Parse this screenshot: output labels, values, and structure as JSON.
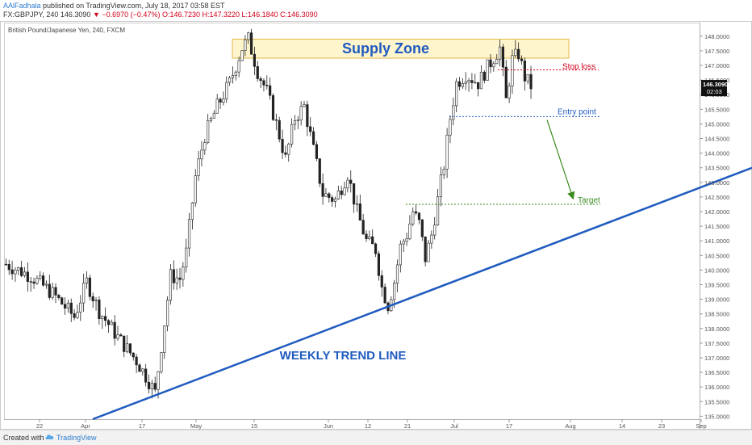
{
  "header": {
    "author": "AAlFadhala",
    "published": "published on TradingView.com, July 18, 2017 03:58 EST",
    "symbol": "FX:GBPJPY, 240",
    "price": "146.3090",
    "change": "−0.6970 (−0.47%)",
    "ohlc": "O:146.7230 H:147.3220 L:146.1840 C:146.3090"
  },
  "chart_data": {
    "type": "candlestick",
    "title": "British Pound/Japanese Yen, 240, FXCM",
    "ylim": [
      134.9,
      148.3
    ],
    "y_ticks": [
      "135.0000",
      "135.5000",
      "136.0000",
      "136.5000",
      "137.0000",
      "137.5000",
      "138.0000",
      "138.5000",
      "139.0000",
      "139.5000",
      "140.0000",
      "140.5000",
      "141.0000",
      "141.5000",
      "142.0000",
      "142.5000",
      "143.0000",
      "143.5000",
      "144.0000",
      "144.5000",
      "145.0000",
      "145.5000",
      "146.0000",
      "146.5000",
      "147.0000",
      "147.5000",
      "148.0000"
    ],
    "x_ticks": [
      "22",
      "Apr",
      "17",
      "May",
      "15",
      "Jun",
      "12",
      "21",
      "Jul",
      "17",
      "Aug",
      "14",
      "23",
      "Sep"
    ],
    "price_label": "146.3090",
    "countdown": "02:03",
    "path": [
      {
        "t": 0,
        "p": 140.2
      },
      {
        "t": 8,
        "p": 139.8
      },
      {
        "t": 15,
        "p": 139.2
      },
      {
        "t": 22,
        "p": 138.4
      },
      {
        "t": 26,
        "p": 139.6
      },
      {
        "t": 30,
        "p": 138.6
      },
      {
        "t": 36,
        "p": 137.7
      },
      {
        "t": 42,
        "p": 136.9
      },
      {
        "t": 46,
        "p": 136.2
      },
      {
        "t": 48,
        "p": 135.8
      },
      {
        "t": 50,
        "p": 137.4
      },
      {
        "t": 53,
        "p": 139.8
      },
      {
        "t": 56,
        "p": 139.7
      },
      {
        "t": 58,
        "p": 140.6
      },
      {
        "t": 61,
        "p": 143.2
      },
      {
        "t": 64,
        "p": 144.6
      },
      {
        "t": 68,
        "p": 145.6
      },
      {
        "t": 72,
        "p": 146.4
      },
      {
        "t": 76,
        "p": 147.6
      },
      {
        "t": 78,
        "p": 147.9
      },
      {
        "t": 81,
        "p": 146.8
      },
      {
        "t": 84,
        "p": 146.1
      },
      {
        "t": 87,
        "p": 145.0
      },
      {
        "t": 90,
        "p": 143.8
      },
      {
        "t": 93,
        "p": 145.2
      },
      {
        "t": 96,
        "p": 145.6
      },
      {
        "t": 99,
        "p": 144.1
      },
      {
        "t": 102,
        "p": 142.6
      },
      {
        "t": 106,
        "p": 142.4
      },
      {
        "t": 110,
        "p": 143.3
      },
      {
        "t": 113,
        "p": 142.0
      },
      {
        "t": 116,
        "p": 141.0
      },
      {
        "t": 119,
        "p": 140.7
      },
      {
        "t": 121,
        "p": 139.4
      },
      {
        "t": 123,
        "p": 138.8
      },
      {
        "t": 125,
        "p": 139.6
      },
      {
        "t": 127,
        "p": 140.8
      },
      {
        "t": 129,
        "p": 141.2
      },
      {
        "t": 131,
        "p": 142.0
      },
      {
        "t": 133,
        "p": 141.6
      },
      {
        "t": 135,
        "p": 140.4
      },
      {
        "t": 137,
        "p": 141.2
      },
      {
        "t": 139,
        "p": 142.4
      },
      {
        "t": 141,
        "p": 143.6
      },
      {
        "t": 143,
        "p": 145.2
      },
      {
        "t": 145,
        "p": 146.4
      },
      {
        "t": 148,
        "p": 146.7
      },
      {
        "t": 152,
        "p": 146.4
      },
      {
        "t": 156,
        "p": 147.1
      },
      {
        "t": 159,
        "p": 147.6
      },
      {
        "t": 161,
        "p": 145.8
      },
      {
        "t": 163,
        "p": 147.2
      },
      {
        "t": 165,
        "p": 147.4
      },
      {
        "t": 167,
        "p": 146.6
      },
      {
        "t": 169,
        "p": 146.3
      }
    ],
    "annotations": {
      "supply_zone": {
        "label": "Supply Zone",
        "low": 147.25,
        "high": 147.9
      },
      "stop_loss": {
        "label": "Stop loss",
        "price": 146.85
      },
      "entry_point": {
        "label": "Entry point",
        "price": 145.25
      },
      "target": {
        "label": "Target",
        "price": 142.25
      },
      "trend_line": {
        "label": "WEEKLY TREND LINE",
        "start_price": 134.9,
        "end_price": 143.5
      }
    }
  },
  "footer": {
    "created_with": "Created with",
    "brand": "TradingView"
  }
}
